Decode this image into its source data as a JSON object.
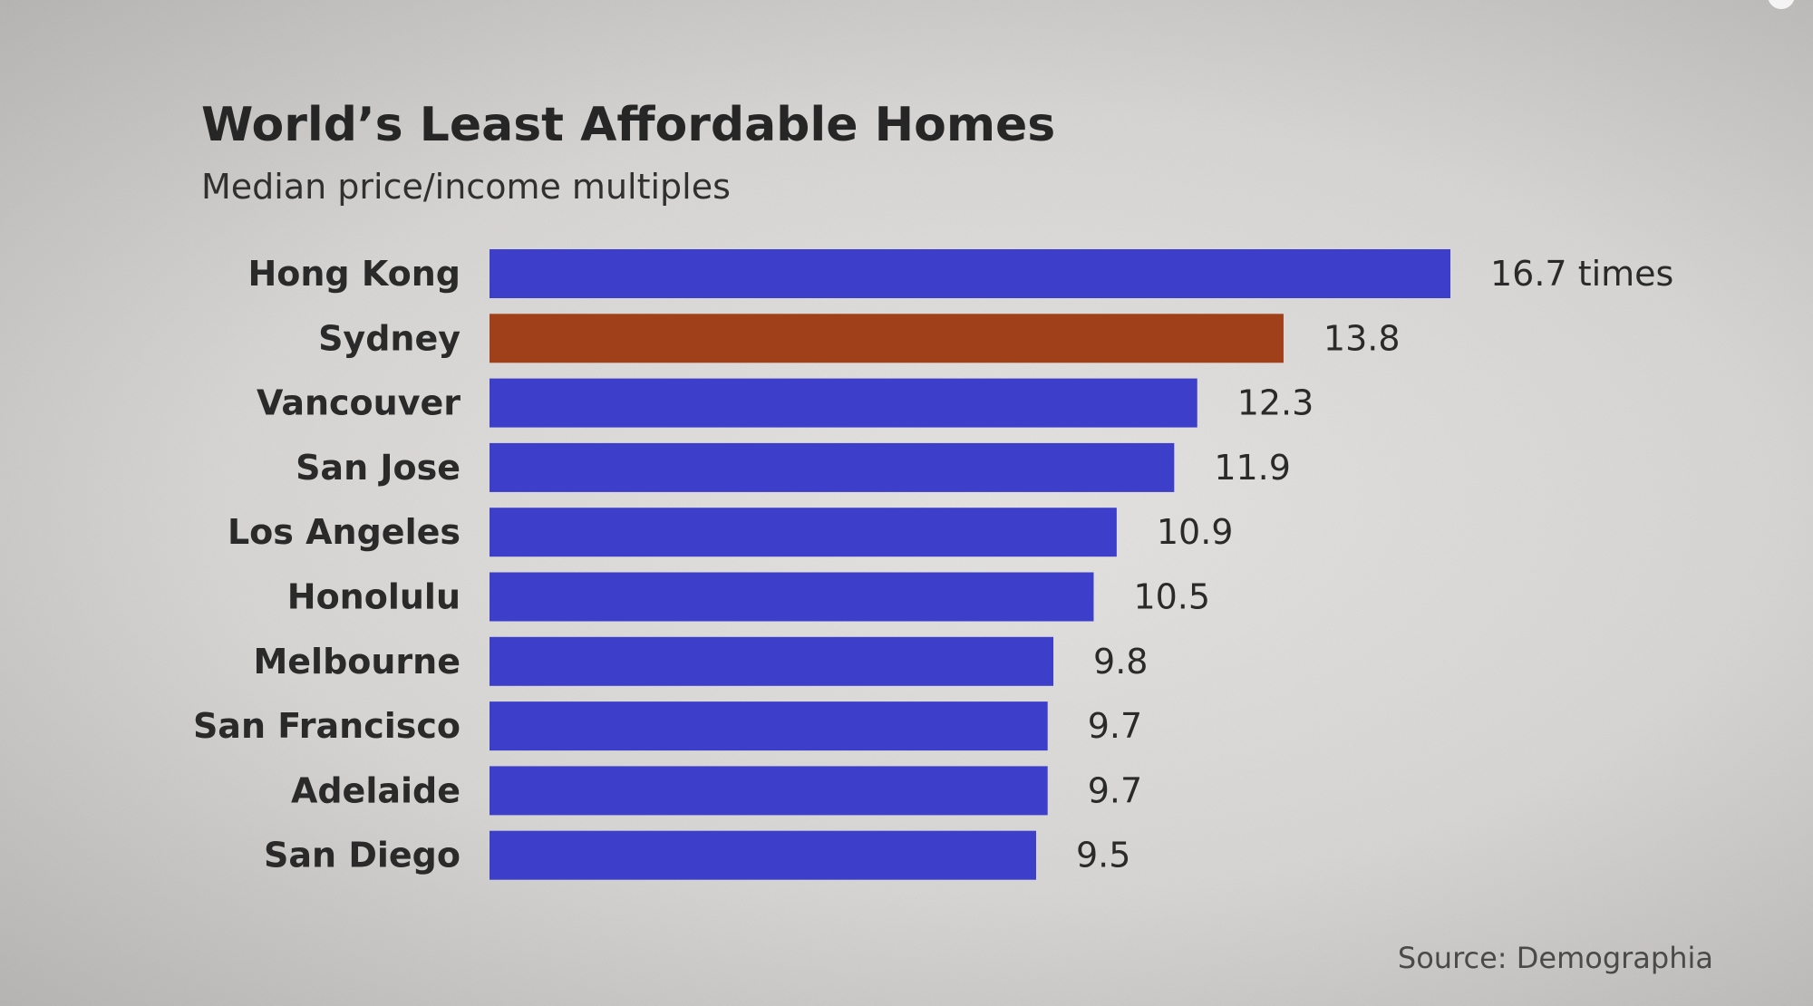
{
  "chart_data": {
    "type": "bar",
    "orientation": "horizontal",
    "title": "World’s Least Affordable Homes",
    "subtitle": "Median price/income multiples",
    "categories": [
      "Hong Kong",
      "Sydney",
      "Vancouver",
      "San Jose",
      "Los Angeles",
      "Honolulu",
      "Melbourne",
      "San Francisco",
      "Adelaide",
      "San Diego"
    ],
    "values": [
      16.7,
      13.8,
      12.3,
      11.9,
      10.9,
      10.5,
      9.8,
      9.7,
      9.7,
      9.5
    ],
    "value_labels": [
      "16.7 times",
      "13.8",
      "12.3",
      "11.9",
      "10.9",
      "10.5",
      "9.8",
      "9.7",
      "9.7",
      "9.5"
    ],
    "bar_color": "#3d3fcb",
    "highlight_color": "#a0401b",
    "highlight_category": "Sydney",
    "xlim": [
      0,
      16.7
    ],
    "grid": false,
    "legend": "none",
    "source": "Source: Demographia"
  }
}
